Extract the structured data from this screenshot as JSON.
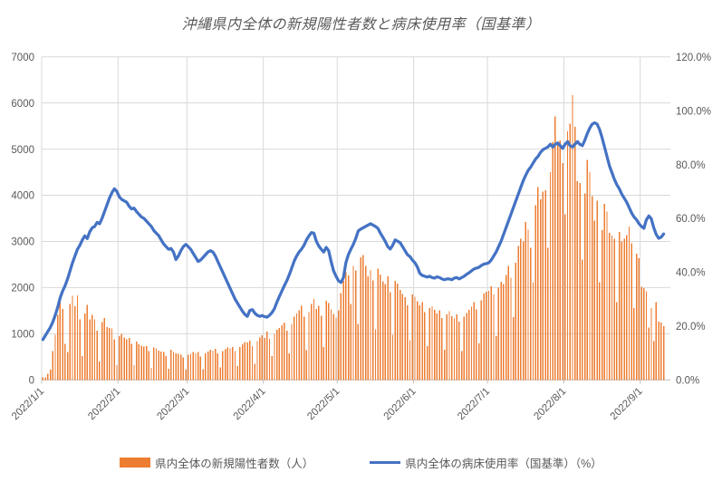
{
  "title": "沖縄県内全体の新規陽性者数と病床使用率（国基準）",
  "legend": {
    "cases_label": "県内全体の新規陽性者数（人）",
    "usage_label": "県内全体の病床使用率（国基準）（%）"
  },
  "colors": {
    "bar": "#ED7D31",
    "line": "#4472C4",
    "grid": "#D9D9D9",
    "axis_line": "#BFBFBF",
    "axis_text": "#595959",
    "title_text": "#595959"
  },
  "chart_data": {
    "type": "combo-bar-line",
    "title": "沖縄県内全体の新規陽性者数と病床使用率（国基準）",
    "start_date": "2022/1/1",
    "end_date": "2022/9/10",
    "x_tick_labels": [
      "2022/1/1",
      "2022/2/1",
      "2022/3/1",
      "2022/4/1",
      "2022/5/1",
      "2022/6/1",
      "2022/7/1",
      "2022/8/1",
      "2022/9/1"
    ],
    "left_axis": {
      "min": 0,
      "max": 7000,
      "labels": [
        "0",
        "1000",
        "2000",
        "3000",
        "4000",
        "5000",
        "6000",
        "7000"
      ]
    },
    "right_axis": {
      "min": 0,
      "max": 120,
      "labels": [
        "0.0%",
        "20.0%",
        "40.0%",
        "60.0%",
        "80.0%",
        "100.0%",
        "120.0%"
      ]
    },
    "grid": true,
    "legend_position": "bottom",
    "series": [
      {
        "name": "県内全体の新規陽性者数（人）",
        "type": "bar",
        "axis": "left",
        "color": "#ED7D31",
        "values": [
          52,
          51,
          130,
          225,
          623,
          981,
          1414,
          1759,
          1533,
          779,
          600,
          1644,
          1817,
          1596,
          1829,
          1313,
          515,
          1443,
          1622,
          1309,
          1414,
          1307,
          1066,
          398,
          1252,
          1336,
          1147,
          1126,
          1112,
          880,
          322,
          944,
          995,
          920,
          883,
          905,
          784,
          320,
          829,
          775,
          745,
          726,
          736,
          622,
          262,
          700,
          684,
          637,
          618,
          604,
          521,
          241,
          654,
          602,
          571,
          566,
          549,
          484,
          226,
          541,
          568,
          603,
          576,
          602,
          505,
          231,
          572,
          610,
          651,
          638,
          672,
          580,
          268,
          625,
          661,
          702,
          688,
          714,
          622,
          297,
          712,
          768,
          825,
          808,
          846,
          731,
          348,
          836,
          918,
          967,
          912,
          1048,
          892,
          520,
          1001,
          1087,
          1125,
          1183,
          1246,
          1068,
          572,
          1210,
          1366,
          1438,
          1507,
          1603,
          1371,
          645,
          1471,
          1642,
          1751,
          1540,
          1606,
          1387,
          708,
          1717,
          1666,
          1528,
          1431,
          1352,
          1504,
          1884,
          2150,
          2342,
          2268,
          1646,
          2473,
          2375,
          1215,
          2656,
          2702,
          2473,
          2244,
          2386,
          2158,
          1100,
          2412,
          2279,
          2133,
          2080,
          2246,
          1902,
          980,
          2150,
          2086,
          1948,
          1862,
          1797,
          1615,
          855,
          1850,
          1800,
          1703,
          1613,
          1684,
          1469,
          730,
          1556,
          1598,
          1520,
          1437,
          1508,
          1341,
          652,
          1424,
          1489,
          1381,
          1328,
          1423,
          1265,
          628,
          1372,
          1448,
          1517,
          1590,
          1680,
          1528,
          790,
          1728,
          1870,
          1913,
          1934,
          2023,
          1847,
          948,
          2001,
          2128,
          2081,
          2277,
          2473,
          2211,
          1360,
          2536,
          2898,
          3062,
          2996,
          3422,
          3258,
          2866,
          2113,
          3781,
          4175,
          3912,
          4077,
          4109,
          2866,
          4502,
          5156,
          5712,
          5091,
          5189,
          4698,
          3585,
          5385,
          5548,
          6169,
          5483,
          4306,
          4270,
          2603,
          4044,
          4763,
          4502,
          3977,
          3455,
          3879,
          2112,
          3241,
          3814,
          3651,
          3186,
          3128,
          3062,
          1688,
          3209,
          2996,
          3062,
          3134,
          3323,
          2964,
          1557,
          2735,
          2637,
          2014,
          1986,
          1916,
          1131,
          1557,
          836,
          1688,
          1263,
          1240,
          1164
        ]
      },
      {
        "name": "県内全体の病床使用率（国基準）（%）",
        "type": "line",
        "axis": "right",
        "color": "#4472C4",
        "values": [
          15.0,
          16.5,
          18.0,
          19.5,
          21.5,
          24.0,
          27.0,
          30.5,
          33.0,
          35.0,
          37.5,
          40.5,
          43.5,
          46.0,
          48.5,
          50.0,
          52.0,
          53.5,
          52.5,
          55.0,
          56.5,
          57.0,
          58.5,
          58.0,
          60.0,
          62.5,
          65.0,
          67.5,
          69.5,
          71.0,
          70.0,
          68.0,
          67.0,
          66.5,
          66.0,
          64.5,
          63.5,
          63.8,
          62.5,
          61.5,
          60.5,
          60.0,
          59.0,
          58.0,
          57.0,
          55.5,
          54.5,
          53.6,
          52.0,
          50.5,
          49.5,
          48.5,
          48.8,
          47.5,
          44.7,
          46.0,
          48.0,
          49.5,
          50.3,
          49.5,
          48.5,
          47.0,
          45.5,
          44.0,
          44.5,
          45.5,
          46.5,
          47.5,
          48.0,
          47.5,
          46.0,
          44.0,
          42.0,
          40.0,
          38.0,
          36.0,
          34.0,
          32.0,
          30.0,
          28.5,
          27.0,
          25.5,
          24.3,
          23.6,
          25.8,
          26.1,
          24.8,
          24.0,
          23.6,
          23.9,
          23.5,
          23.3,
          24.0,
          25.0,
          26.5,
          28.9,
          31.0,
          33.0,
          35.0,
          36.8,
          39.0,
          41.5,
          44.1,
          46.0,
          47.5,
          48.6,
          50.0,
          52.0,
          53.5,
          54.7,
          54.5,
          51.5,
          49.7,
          48.5,
          47.5,
          49.2,
          48.0,
          44.0,
          40.5,
          38.5,
          36.8,
          36.2,
          38.0,
          43.5,
          46.5,
          48.5,
          50.3,
          52.5,
          55.3,
          56.0,
          56.5,
          57.0,
          57.5,
          58.0,
          57.5,
          57.0,
          56.3,
          54.5,
          53.0,
          51.4,
          49.5,
          48.6,
          50.0,
          52.0,
          51.5,
          51.0,
          49.5,
          48.0,
          46.5,
          45.8,
          44.5,
          43.5,
          42.0,
          39.6,
          38.8,
          38.5,
          38.2,
          38.5,
          38.0,
          37.8,
          38.3,
          38.0,
          37.5,
          37.2,
          37.5,
          37.5,
          37.2,
          37.8,
          38.0,
          37.5,
          38.0,
          38.5,
          39.2,
          39.8,
          40.5,
          41.2,
          41.5,
          41.8,
          42.5,
          43.0,
          43.2,
          43.5,
          44.5,
          46.0,
          47.5,
          49.5,
          51.5,
          54.0,
          56.5,
          59.0,
          61.5,
          64.0,
          66.5,
          69.0,
          71.5,
          74.0,
          76.0,
          77.8,
          79.0,
          80.5,
          82.0,
          83.0,
          84.5,
          85.5,
          86.0,
          86.5,
          87.5,
          86.5,
          87.5,
          88.0,
          87.0,
          86.0,
          87.5,
          88.5,
          87.0,
          86.5,
          87.5,
          88.5,
          87.5,
          87.0,
          89.0,
          91.5,
          93.5,
          95.0,
          95.5,
          95.0,
          93.0,
          90.0,
          86.5,
          83.0,
          79.5,
          77.0,
          74.5,
          72.5,
          71.0,
          69.0,
          67.5,
          66.0,
          64.0,
          62.0,
          60.5,
          59.5,
          58.0,
          57.0,
          56.3,
          59.5,
          60.9,
          59.8,
          56.5,
          54.0,
          52.6,
          53.0,
          54.2
        ]
      }
    ]
  }
}
